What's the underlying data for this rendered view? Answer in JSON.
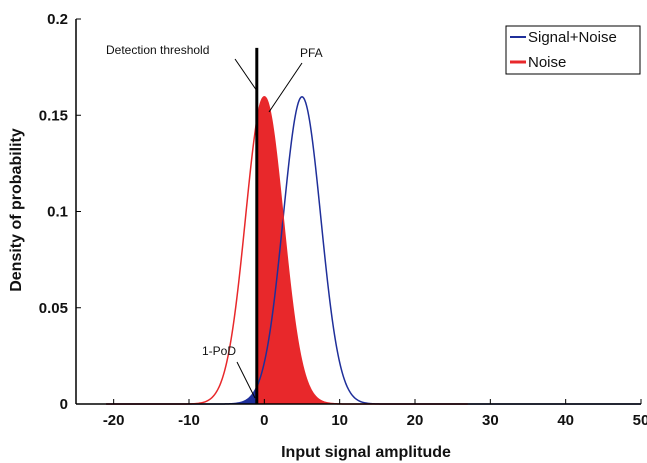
{
  "chart_data": {
    "type": "line",
    "title": "",
    "xlabel": "Input signal amplitude",
    "ylabel": "Density of probability",
    "xlim": [
      -25,
      50
    ],
    "ylim": [
      0,
      0.2
    ],
    "x_ticks": [
      -20,
      -10,
      0,
      10,
      20,
      30,
      40,
      50
    ],
    "x_tick_labels": [
      "-20",
      "-10",
      "0",
      "10",
      "20",
      "30",
      "40",
      "50"
    ],
    "y_ticks": [
      0,
      0.05,
      0.1,
      0.15,
      0.2
    ],
    "y_tick_labels": [
      "0",
      "0.05",
      "0.1",
      "0.15",
      "0.2"
    ],
    "grid": false,
    "legend_position": "top-right",
    "series": [
      {
        "name": "Signal+Noise",
        "color": "#1f2f9a",
        "mean": 5,
        "sd": 2.5,
        "x_range": [
          -21,
          50
        ]
      },
      {
        "name": "Noise",
        "color": "#e8282b",
        "mean": 0,
        "sd": 2.5,
        "x_range": [
          -21,
          27
        ]
      }
    ],
    "threshold": {
      "x": -1,
      "y_top": 0.185,
      "color": "#000000"
    },
    "annotations": {
      "threshold_label": "Detection threshold",
      "pfa_label": "PFA",
      "pod_label": "1-PoD"
    }
  }
}
